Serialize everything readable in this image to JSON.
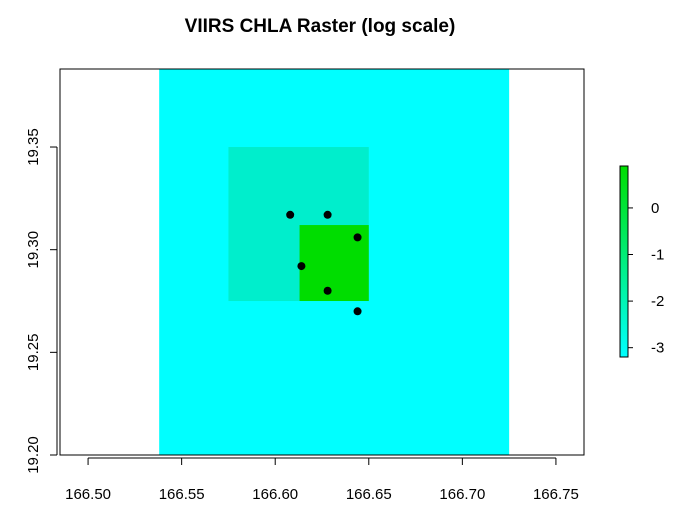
{
  "chart_data": {
    "type": "heatmap",
    "title": "VIIRS CHLA Raster (log scale)",
    "xlabel": "",
    "ylabel": "",
    "xlim": [
      166.485,
      166.765
    ],
    "ylim": [
      19.2,
      19.388
    ],
    "x_ticks": [
      "166.50",
      "166.55",
      "166.60",
      "166.65",
      "166.70",
      "166.75"
    ],
    "y_ticks": [
      "19.20",
      "19.25",
      "19.30",
      "19.35"
    ],
    "raster_extent": {
      "xmin": 166.538,
      "xmax": 166.725,
      "ymin": 19.2,
      "ymax": 19.388
    },
    "cells": [
      {
        "xmin": 166.575,
        "xmax": 166.65,
        "ymin": 19.275,
        "ymax": 19.35,
        "value": -2.6,
        "color": "#00eecc"
      },
      {
        "xmin": 166.613,
        "xmax": 166.65,
        "ymin": 19.275,
        "ymax": 19.312,
        "value": 0.8,
        "color": "#00dd00"
      }
    ],
    "background_value": -3.1,
    "background_color": "#00ffff",
    "points": [
      {
        "x": 166.608,
        "y": 19.317
      },
      {
        "x": 166.628,
        "y": 19.317
      },
      {
        "x": 166.644,
        "y": 19.306
      },
      {
        "x": 166.614,
        "y": 19.292
      },
      {
        "x": 166.628,
        "y": 19.28
      },
      {
        "x": 166.644,
        "y": 19.27
      }
    ],
    "legend": {
      "placement": "right",
      "min": -3.2,
      "max": 0.9,
      "ticks": [
        "0",
        "-1",
        "-2",
        "-3"
      ],
      "color_low": "#00ffff",
      "color_high": "#00dd00"
    }
  }
}
